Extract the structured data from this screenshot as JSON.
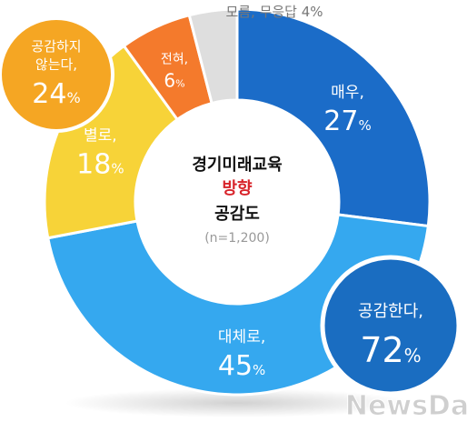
{
  "chart_data": {
    "type": "donut",
    "title_lines": [
      "경기미래교육",
      "방향",
      "공감도"
    ],
    "sample": "(n=1,200)",
    "segments": [
      {
        "label": "매우,",
        "value": 27,
        "color": "#1b6cc8"
      },
      {
        "label": "대체로,",
        "value": 45,
        "color": "#35a8ef"
      },
      {
        "label": "별로,",
        "value": 18,
        "color": "#f7d338"
      },
      {
        "label": "전혀,",
        "value": 6,
        "color": "#f47a2c"
      },
      {
        "label": "모름, 무응답",
        "value": 4,
        "color": "#dedede"
      }
    ],
    "callouts": [
      {
        "label": "공감한다,",
        "value": 72,
        "color": "#1a6dc1"
      },
      {
        "label": "공감하지 않는다,",
        "line1": "공감하지",
        "line2": "않는다,",
        "value": 24,
        "color": "#f5a623"
      }
    ],
    "unit": "%"
  },
  "watermark": "NewsDa"
}
